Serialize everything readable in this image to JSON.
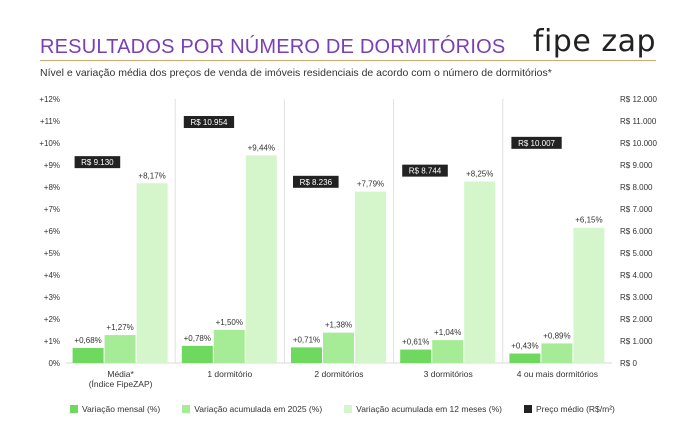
{
  "header": {
    "title": "RESULTADOS POR NÚMERO DE DORMITÓRIOS",
    "subtitle": "Nível e variação média dos preços de venda de imóveis residenciais de acordo com o número de dormitórios*",
    "logo_text": "fipe zap"
  },
  "colors": {
    "title": "#7a3fb5",
    "mensal": "#6ed85f",
    "ano": "#a6ec97",
    "doze": "#d4f6ca",
    "preco": "#222222"
  },
  "chart_data": {
    "type": "bar",
    "categories": [
      "Média*\n(Índice FipeZAP)",
      "1 dormitório",
      "2 dormitórios",
      "3 dormitórios",
      "4 ou mais dormitórios"
    ],
    "series": [
      {
        "name": "Variação mensal (%)",
        "values": [
          0.68,
          0.78,
          0.71,
          0.61,
          0.43
        ],
        "labels": [
          "+0,68%",
          "+0,78%",
          "+0,71%",
          "+0,61%",
          "+0,43%"
        ]
      },
      {
        "name": "Variação acumulada em 2025 (%)",
        "values": [
          1.27,
          1.5,
          1.38,
          1.04,
          0.89
        ],
        "labels": [
          "+1,27%",
          "+1,50%",
          "+1,38%",
          "+1,04%",
          "+0,89%"
        ]
      },
      {
        "name": "Variação acumulada em 12 meses (%)",
        "values": [
          8.17,
          9.44,
          7.79,
          8.25,
          6.15
        ],
        "labels": [
          "+8,17%",
          "+9,44%",
          "+7,79%",
          "+8,25%",
          "+6,15%"
        ]
      }
    ],
    "price_series": {
      "name": "Preço médio (R$/m²)",
      "values": [
        9130,
        10954,
        8236,
        8744,
        10007
      ],
      "labels": [
        "R$ 9.130",
        "R$ 10.954",
        "R$ 8.236",
        "R$ 8.744",
        "R$ 10.007"
      ]
    },
    "y_left": {
      "ylim": [
        0,
        12
      ],
      "ticks": [
        0,
        1,
        2,
        3,
        4,
        5,
        6,
        7,
        8,
        9,
        10,
        11,
        12
      ],
      "tick_labels": [
        "0%",
        "+1%",
        "+2%",
        "+3%",
        "+4%",
        "+5%",
        "+6%",
        "+7%",
        "+8%",
        "+9%",
        "+10%",
        "+11%",
        "+12%"
      ]
    },
    "y_right": {
      "ylim": [
        0,
        12000
      ],
      "ticks": [
        0,
        1000,
        2000,
        3000,
        4000,
        5000,
        6000,
        7000,
        8000,
        9000,
        10000,
        11000,
        12000
      ],
      "tick_labels": [
        "R$ 0",
        "R$ 1.000",
        "R$ 2.000",
        "R$ 3.000",
        "R$ 4.000",
        "R$ 5.000",
        "R$ 6.000",
        "R$ 7.000",
        "R$ 8.000",
        "R$ 9.000",
        "R$ 10.000",
        "R$ 11.000",
        "R$ 12.000"
      ]
    },
    "grid": false,
    "legend_position": "bottom"
  }
}
